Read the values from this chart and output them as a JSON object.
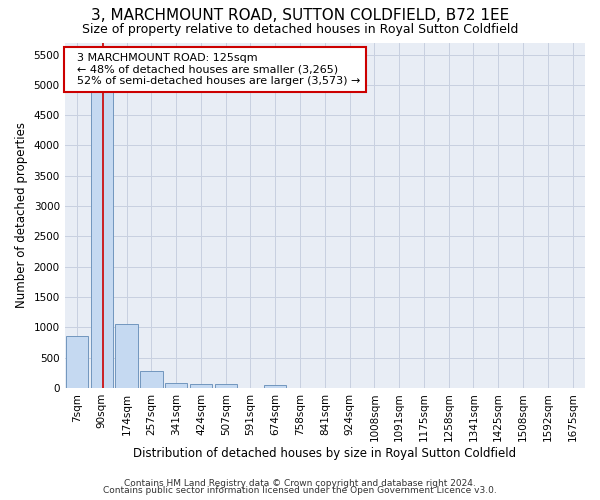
{
  "title": "3, MARCHMOUNT ROAD, SUTTON COLDFIELD, B72 1EE",
  "subtitle": "Size of property relative to detached houses in Royal Sutton Coldfield",
  "xlabel": "Distribution of detached houses by size in Royal Sutton Coldfield",
  "ylabel": "Number of detached properties",
  "footer1": "Contains HM Land Registry data © Crown copyright and database right 2024.",
  "footer2": "Contains public sector information licensed under the Open Government Licence v3.0.",
  "bins": [
    "7sqm",
    "90sqm",
    "174sqm",
    "257sqm",
    "341sqm",
    "424sqm",
    "507sqm",
    "591sqm",
    "674sqm",
    "758sqm",
    "841sqm",
    "924sqm",
    "1008sqm",
    "1091sqm",
    "1175sqm",
    "1258sqm",
    "1341sqm",
    "1425sqm",
    "1508sqm",
    "1592sqm",
    "1675sqm"
  ],
  "values": [
    850,
    5500,
    1060,
    270,
    80,
    70,
    70,
    0,
    50,
    0,
    0,
    0,
    0,
    0,
    0,
    0,
    0,
    0,
    0,
    0,
    0
  ],
  "bar_color": "#c5d9f1",
  "bar_edge_color": "#7196be",
  "vline_x": 1.05,
  "vline_color": "#cc0000",
  "ylim": [
    0,
    5700
  ],
  "yticks": [
    0,
    500,
    1000,
    1500,
    2000,
    2500,
    3000,
    3500,
    4000,
    4500,
    5000,
    5500
  ],
  "annotation_text": "  3 MARCHMOUNT ROAD: 125sqm\n  ← 48% of detached houses are smaller (3,265)\n  52% of semi-detached houses are larger (3,573) →",
  "annotation_box_color": "white",
  "annotation_box_edge": "#cc0000",
  "title_fontsize": 11,
  "subtitle_fontsize": 9,
  "tick_fontsize": 7.5,
  "annotation_fontsize": 8,
  "grid_color": "#c8d0e0",
  "background_color": "#e8edf5"
}
